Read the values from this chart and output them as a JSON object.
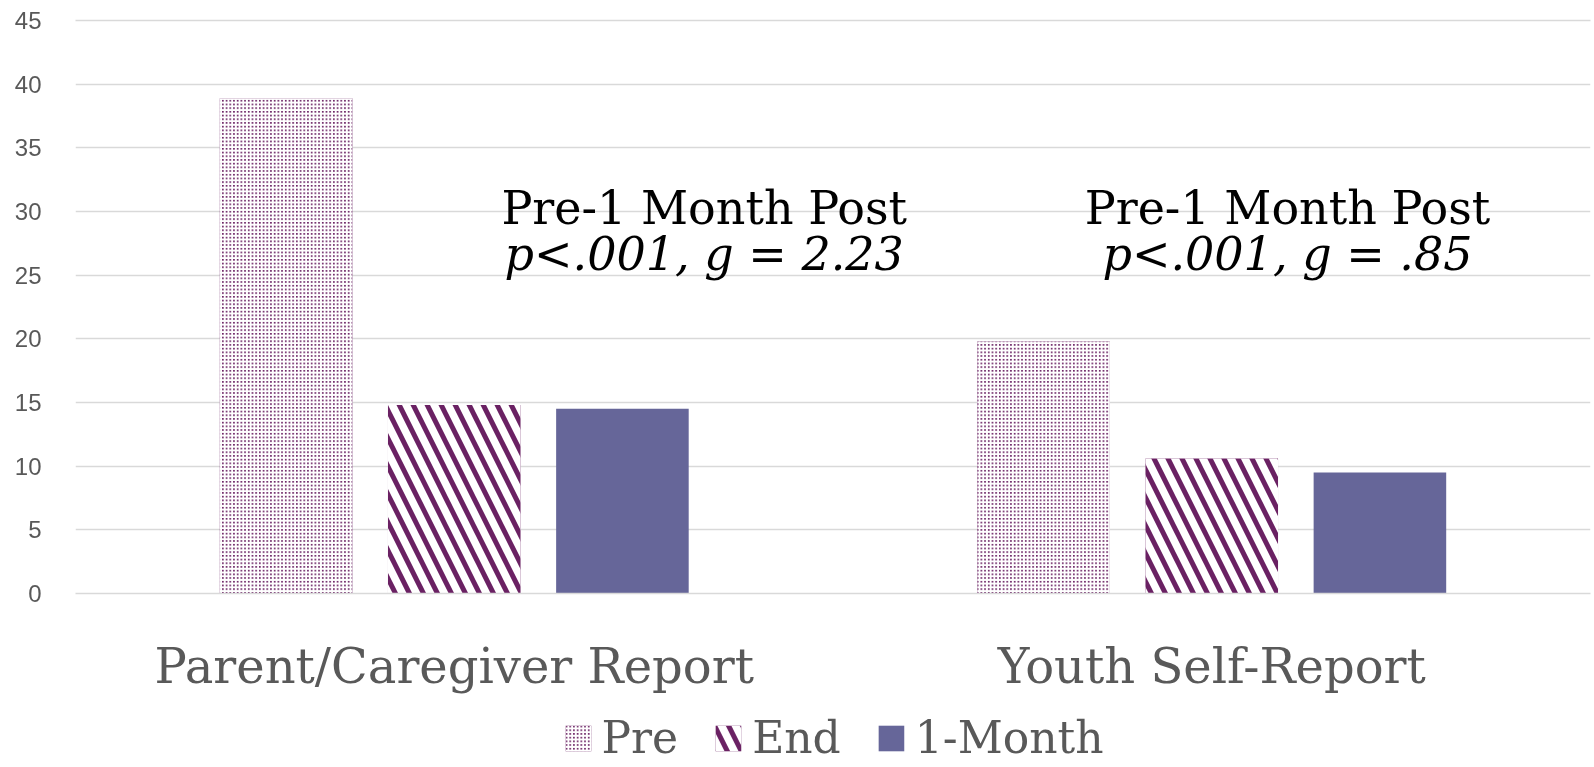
{
  "chart_data": {
    "type": "bar",
    "categories": [
      "Parent/Caregiver Report",
      "Youth Self-Report"
    ],
    "series": [
      {
        "name": "Pre",
        "color": "#6a2163",
        "values": [
          38.9,
          19.8
        ]
      },
      {
        "name": "End",
        "color": "#6a2163",
        "values": [
          14.8,
          10.6
        ]
      },
      {
        "name": "1-Month",
        "color": "#666699",
        "values": [
          14.5,
          9.5
        ]
      }
    ],
    "ylim": [
      0,
      45
    ],
    "yticks": [
      0,
      5,
      10,
      15,
      20,
      25,
      30,
      35,
      40,
      45
    ],
    "grid": "y",
    "legend": "bottom",
    "annotations": [
      "Pre-1 Month Post\np<.001, g = 2.23",
      "Pre-1 Month Post\np<.001, g = .85"
    ]
  }
}
